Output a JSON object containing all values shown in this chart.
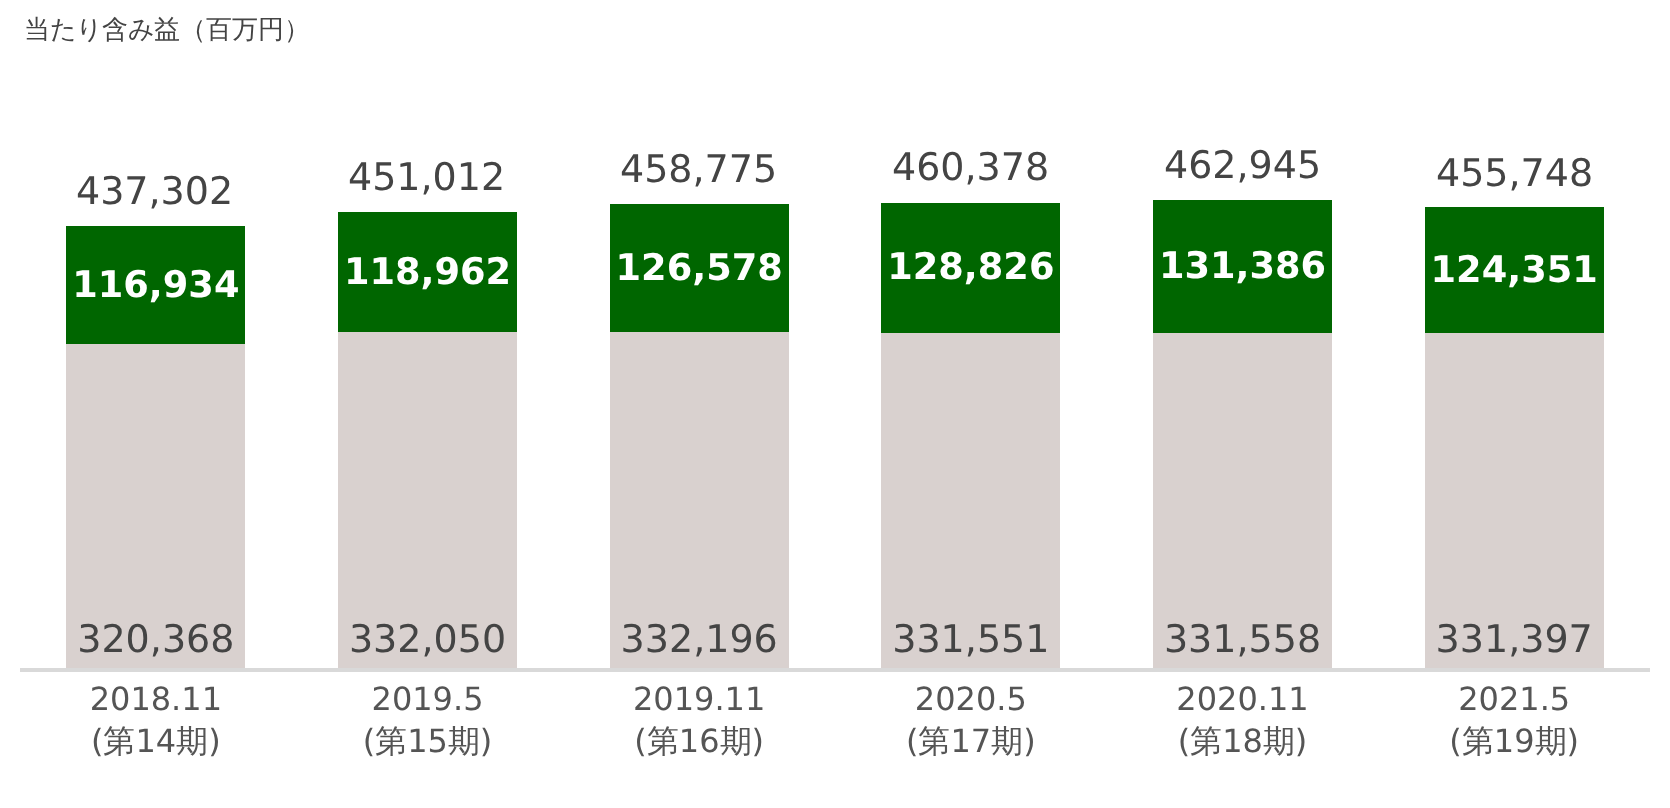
{
  "chart_data": {
    "type": "bar",
    "stacked": true,
    "annotations": [
      "当たり含み益（百万円）"
    ],
    "categories": [
      "2018.11\n(第14期)",
      "2019.5\n(第15期)",
      "2019.11\n(第16期)",
      "2020.5\n(第17期)",
      "2020.11\n(第18期)",
      "2021.5\n(第19期)"
    ],
    "series": [
      {
        "color": "#d9d1cf",
        "values": [
          320368,
          332050,
          332196,
          331551,
          331558,
          331397
        ],
        "value_labels": [
          "320,368",
          "332,050",
          "332,196",
          "331,551",
          "331,558",
          "331,397"
        ]
      },
      {
        "color": "#006600",
        "values": [
          116934,
          118962,
          126578,
          128826,
          131386,
          124351
        ],
        "value_labels": [
          "116,934",
          "118,962",
          "126,578",
          "128,826",
          "131,386",
          "124,351"
        ]
      }
    ],
    "totals": [
      "437,302",
      "451,012",
      "458,775",
      "460,378",
      "462,945",
      "455,748"
    ],
    "tick_labels": "x"
  }
}
